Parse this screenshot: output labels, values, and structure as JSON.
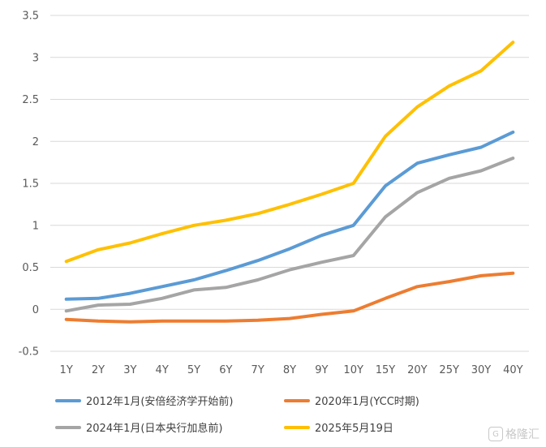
{
  "chart_data": {
    "type": "line",
    "title": "",
    "xlabel": "",
    "ylabel": "",
    "categories": [
      "1Y",
      "2Y",
      "3Y",
      "4Y",
      "5Y",
      "6Y",
      "7Y",
      "8Y",
      "9Y",
      "10Y",
      "15Y",
      "20Y",
      "25Y",
      "30Y",
      "40Y"
    ],
    "ylim": [
      -0.5,
      3.5
    ],
    "yticks": [
      -0.5,
      0,
      0.5,
      1,
      1.5,
      2,
      2.5,
      3,
      3.5
    ],
    "ytick_labels": [
      "-0.5",
      "0",
      "0.5",
      "1",
      "1.5",
      "2",
      "2.5",
      "3",
      "3.5"
    ],
    "grid": true,
    "legend_position": "bottom",
    "series": [
      {
        "name": "2012年1月(安倍经济学开始前)",
        "color": "#5B9BD5",
        "values": [
          0.12,
          0.13,
          0.19,
          0.27,
          0.35,
          0.46,
          0.58,
          0.72,
          0.88,
          1.0,
          1.47,
          1.74,
          1.84,
          1.93,
          2.11
        ]
      },
      {
        "name": "2020年1月(YCC时期)",
        "color": "#ED7D31",
        "values": [
          -0.12,
          -0.14,
          -0.15,
          -0.14,
          -0.14,
          -0.14,
          -0.13,
          -0.11,
          -0.06,
          -0.02,
          0.13,
          0.27,
          0.33,
          0.4,
          0.43
        ]
      },
      {
        "name": "2024年1月(日本央行加息前)",
        "color": "#A5A5A5",
        "values": [
          -0.02,
          0.05,
          0.06,
          0.13,
          0.23,
          0.26,
          0.35,
          0.47,
          0.56,
          0.64,
          1.1,
          1.39,
          1.56,
          1.65,
          1.8
        ]
      },
      {
        "name": "2025年5月19日",
        "color": "#FFC000",
        "values": [
          0.57,
          0.71,
          0.79,
          0.9,
          1.0,
          1.06,
          1.14,
          1.25,
          1.37,
          1.5,
          2.06,
          2.41,
          2.66,
          2.84,
          3.18
        ]
      }
    ]
  },
  "watermark": {
    "label": "格隆汇",
    "icon": "gelonghui-logo-icon"
  }
}
